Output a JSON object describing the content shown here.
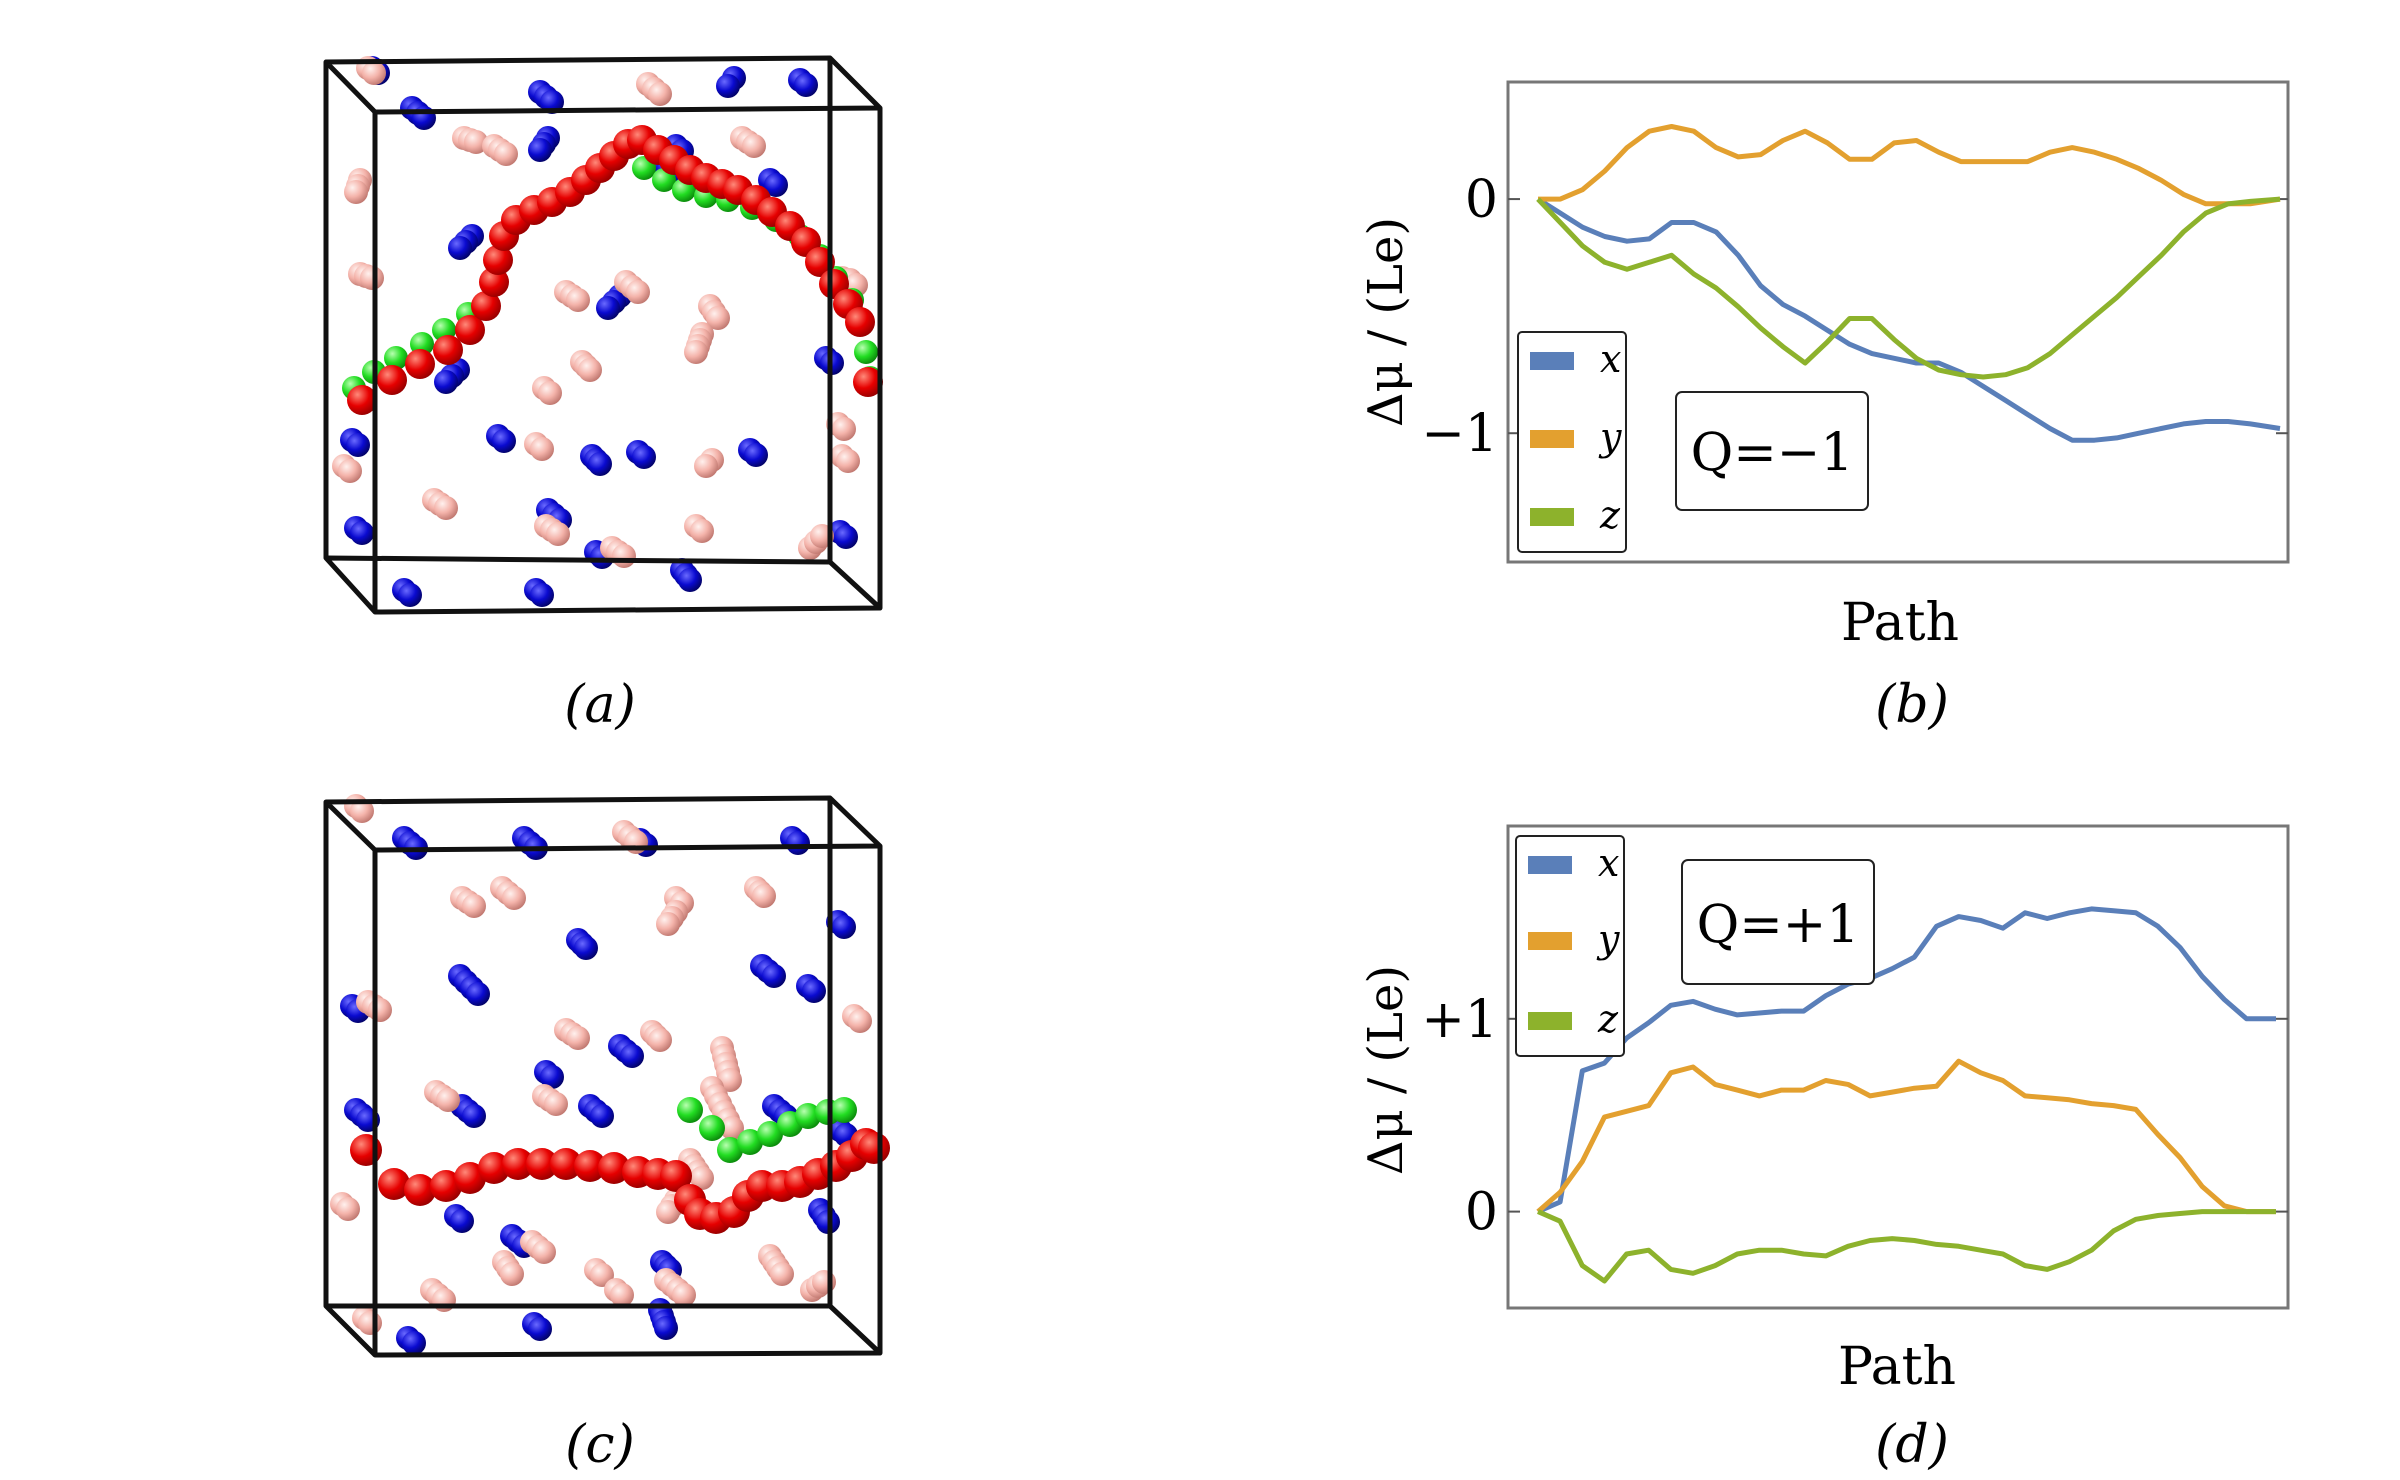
{
  "panels": {
    "a": {
      "label": "(a)"
    },
    "b": {
      "label": "(b)"
    },
    "c": {
      "label": "(c)"
    },
    "d": {
      "label": "(d)"
    }
  },
  "colors": {
    "x": "#5a7fb9",
    "y": "#e3a02f",
    "z": "#8db22c",
    "string_red": "#e60000",
    "string_green": "#22dd22",
    "charge_blue": "#0a0ad0",
    "charge_pink": "#f4b3aa",
    "box": "#111111",
    "frame": "#777777"
  },
  "chart_data": [
    {
      "id": "b",
      "type": "line",
      "xlabel": "Path",
      "ylabel": "Δμ / (Le)",
      "annotation": "Q=−1",
      "ylim": [
        -1.55,
        0.5
      ],
      "yticks": [
        {
          "value": 0,
          "label": "0"
        },
        {
          "value": -1,
          "label": "−1"
        }
      ],
      "legend": {
        "position": "bottom-left",
        "entries": [
          "x",
          "y",
          "z"
        ]
      },
      "x": [
        0,
        0.03,
        0.06,
        0.09,
        0.12,
        0.15,
        0.18,
        0.21,
        0.24,
        0.27,
        0.3,
        0.33,
        0.36,
        0.39,
        0.42,
        0.45,
        0.48,
        0.51,
        0.54,
        0.57,
        0.6,
        0.63,
        0.66,
        0.69,
        0.72,
        0.75,
        0.78,
        0.81,
        0.84,
        0.87,
        0.9,
        0.93,
        0.96,
        1.0
      ],
      "series": [
        {
          "name": "x",
          "values": [
            0,
            -0.06,
            -0.12,
            -0.16,
            -0.18,
            -0.17,
            -0.1,
            -0.1,
            -0.14,
            -0.24,
            -0.37,
            -0.45,
            -0.5,
            -0.56,
            -0.62,
            -0.66,
            -0.68,
            -0.7,
            -0.7,
            -0.74,
            -0.8,
            -0.86,
            -0.92,
            -0.98,
            -1.03,
            -1.03,
            -1.02,
            -1.0,
            -0.98,
            -0.96,
            -0.95,
            -0.95,
            -0.96,
            -0.98
          ]
        },
        {
          "name": "y",
          "values": [
            0,
            0,
            0.04,
            0.12,
            0.22,
            0.29,
            0.31,
            0.29,
            0.22,
            0.18,
            0.19,
            0.25,
            0.29,
            0.24,
            0.17,
            0.17,
            0.24,
            0.25,
            0.2,
            0.16,
            0.16,
            0.16,
            0.16,
            0.2,
            0.22,
            0.2,
            0.17,
            0.13,
            0.08,
            0.02,
            -0.02,
            -0.02,
            -0.02,
            0
          ]
        },
        {
          "name": "z",
          "values": [
            0,
            -0.1,
            -0.2,
            -0.27,
            -0.3,
            -0.27,
            -0.24,
            -0.32,
            -0.38,
            -0.46,
            -0.55,
            -0.63,
            -0.7,
            -0.61,
            -0.51,
            -0.51,
            -0.6,
            -0.68,
            -0.73,
            -0.75,
            -0.76,
            -0.75,
            -0.72,
            -0.66,
            -0.58,
            -0.5,
            -0.42,
            -0.33,
            -0.24,
            -0.14,
            -0.06,
            -0.02,
            -0.01,
            0
          ]
        }
      ]
    },
    {
      "id": "d",
      "type": "line",
      "xlabel": "Path",
      "ylabel": "Δμ / (Le)",
      "annotation": "Q=+1",
      "ylim": [
        -0.5,
        2.0
      ],
      "yticks": [
        {
          "value": 0,
          "label": "0"
        },
        {
          "value": 1,
          "label": "+1"
        }
      ],
      "legend": {
        "position": "top-left",
        "entries": [
          "x",
          "y",
          "z"
        ]
      },
      "x": [
        0,
        0.03,
        0.06,
        0.09,
        0.12,
        0.15,
        0.18,
        0.21,
        0.24,
        0.27,
        0.3,
        0.33,
        0.36,
        0.39,
        0.42,
        0.45,
        0.48,
        0.51,
        0.54,
        0.57,
        0.6,
        0.63,
        0.66,
        0.69,
        0.72,
        0.75,
        0.78,
        0.81,
        0.84,
        0.87,
        0.9,
        0.93,
        0.96,
        1.0
      ],
      "series": [
        {
          "name": "x",
          "values": [
            0,
            0.05,
            0.73,
            0.77,
            0.9,
            0.98,
            1.07,
            1.09,
            1.05,
            1.02,
            1.03,
            1.04,
            1.04,
            1.12,
            1.18,
            1.21,
            1.26,
            1.32,
            1.48,
            1.53,
            1.51,
            1.47,
            1.55,
            1.52,
            1.55,
            1.57,
            1.56,
            1.55,
            1.48,
            1.37,
            1.22,
            1.1,
            1.0,
            1.0
          ]
        },
        {
          "name": "y",
          "values": [
            0,
            0.1,
            0.26,
            0.49,
            0.52,
            0.55,
            0.72,
            0.75,
            0.66,
            0.63,
            0.6,
            0.63,
            0.63,
            0.68,
            0.66,
            0.6,
            0.62,
            0.64,
            0.65,
            0.78,
            0.72,
            0.68,
            0.6,
            0.59,
            0.58,
            0.56,
            0.55,
            0.53,
            0.4,
            0.28,
            0.13,
            0.03,
            0,
            0
          ]
        },
        {
          "name": "z",
          "values": [
            0,
            -0.05,
            -0.28,
            -0.36,
            -0.22,
            -0.2,
            -0.3,
            -0.32,
            -0.28,
            -0.22,
            -0.2,
            -0.2,
            -0.22,
            -0.23,
            -0.18,
            -0.15,
            -0.14,
            -0.15,
            -0.17,
            -0.18,
            -0.2,
            -0.22,
            -0.28,
            -0.3,
            -0.26,
            -0.2,
            -0.1,
            -0.04,
            -0.02,
            -0.01,
            0,
            0,
            0,
            0
          ]
        }
      ]
    }
  ]
}
